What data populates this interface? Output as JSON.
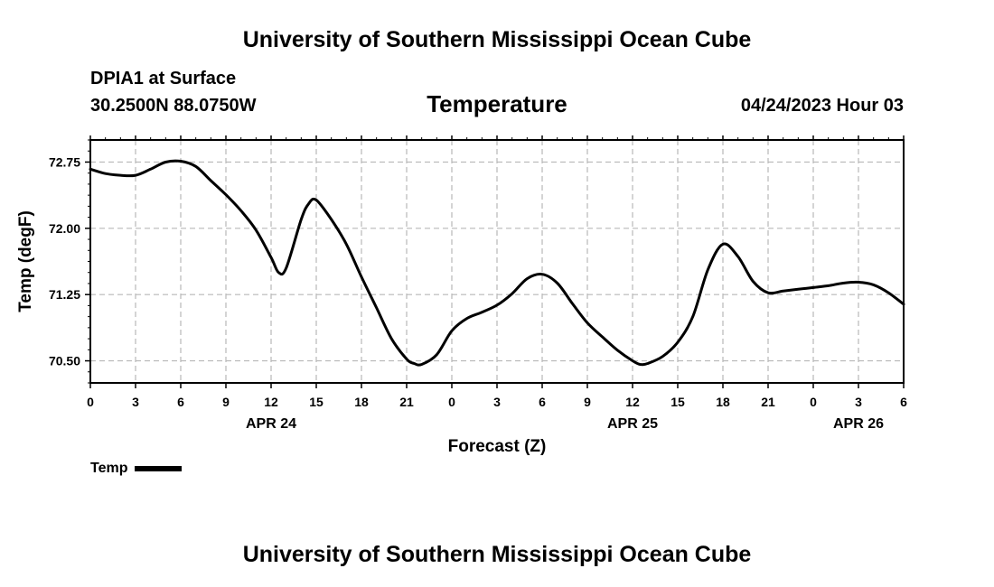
{
  "header": {
    "title": "University of Southern Mississippi Ocean Cube",
    "station": "DPIA1 at Surface",
    "coordinates": "30.2500N  88.0750W",
    "variable": "Temperature",
    "datetime": "04/24/2023 Hour 03"
  },
  "footer": {
    "title": "University of Southern Mississippi Ocean Cube"
  },
  "legend": {
    "label": "Temp"
  },
  "chart_data": {
    "type": "line",
    "title": "Temperature",
    "xlabel": "Forecast (Z)",
    "ylabel": "Temp (degF)",
    "xlim": [
      0,
      54
    ],
    "ylim": [
      70.25,
      73.0
    ],
    "x_ticks": [
      0,
      3,
      6,
      9,
      12,
      15,
      18,
      21,
      24,
      27,
      30,
      33,
      36,
      39,
      42,
      45,
      48,
      51,
      54
    ],
    "x_tick_labels": [
      "0",
      "3",
      "6",
      "9",
      "12",
      "15",
      "18",
      "21",
      "0",
      "3",
      "6",
      "9",
      "12",
      "15",
      "18",
      "21",
      "0",
      "3",
      "6"
    ],
    "day_labels": [
      {
        "x": 12,
        "label": "APR 24"
      },
      {
        "x": 36,
        "label": "APR 25"
      },
      {
        "x": 51,
        "label": "APR 26"
      }
    ],
    "y_ticks": [
      70.5,
      71.25,
      72.0,
      72.75
    ],
    "y_tick_labels": [
      "70.50",
      "71.25",
      "72.00",
      "72.75"
    ],
    "grid": true,
    "legend_position": "bottom-left",
    "series": [
      {
        "name": "Temp",
        "color": "#000000",
        "x": [
          0,
          1,
          2,
          3,
          4,
          5,
          6,
          7,
          8,
          9,
          10,
          11,
          12,
          12.5,
          13,
          14,
          14.5,
          15,
          16,
          17,
          18,
          19,
          20,
          21,
          21.5,
          22,
          23,
          24,
          25,
          26,
          27,
          28,
          29,
          30,
          31,
          32,
          33,
          34,
          35,
          36,
          36.5,
          37,
          38,
          39,
          40,
          41,
          42,
          43,
          44,
          45,
          46,
          47,
          48,
          49,
          50,
          51,
          52,
          53,
          54
        ],
        "y": [
          72.67,
          72.62,
          72.6,
          72.6,
          72.67,
          72.75,
          72.76,
          72.7,
          72.54,
          72.38,
          72.2,
          71.98,
          71.67,
          71.5,
          71.55,
          72.1,
          72.28,
          72.32,
          72.1,
          71.82,
          71.45,
          71.1,
          70.75,
          70.52,
          70.47,
          70.46,
          70.57,
          70.84,
          70.98,
          71.05,
          71.13,
          71.26,
          71.43,
          71.48,
          71.38,
          71.15,
          70.93,
          70.77,
          70.62,
          70.5,
          70.46,
          70.47,
          70.55,
          70.71,
          71.0,
          71.53,
          71.82,
          71.68,
          71.4,
          71.27,
          71.29,
          71.31,
          71.33,
          71.35,
          71.38,
          71.39,
          71.36,
          71.27,
          71.14
        ]
      }
    ]
  }
}
